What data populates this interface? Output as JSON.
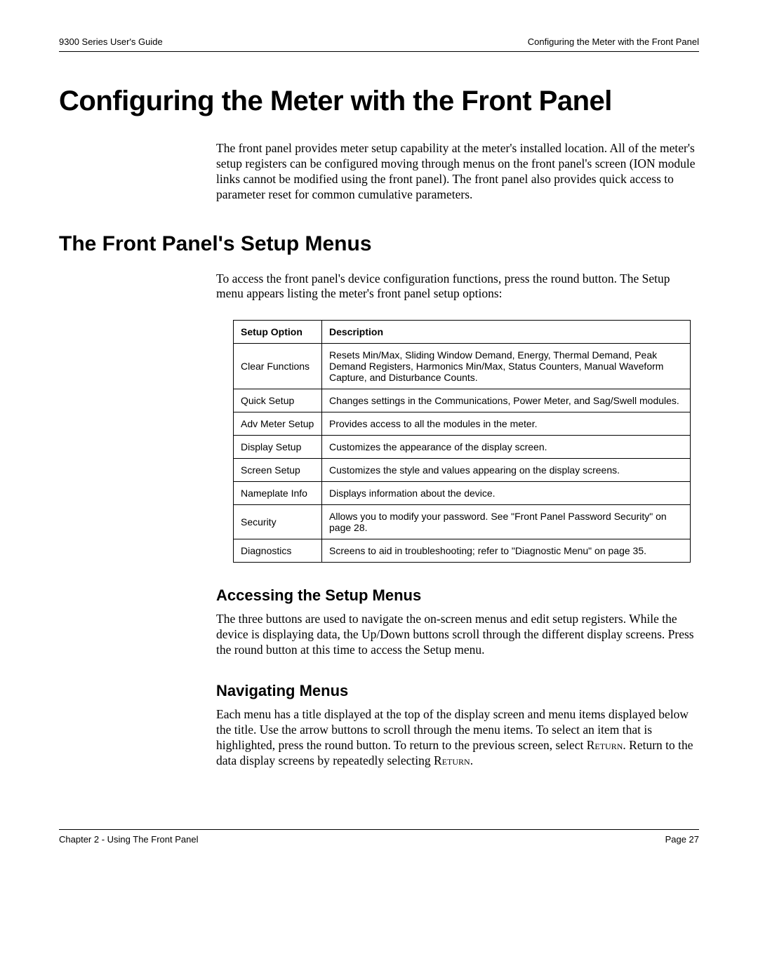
{
  "header": {
    "left": "9300 Series User's Guide",
    "right": "Configuring the Meter with the Front Panel"
  },
  "title": "Configuring the Meter with the Front Panel",
  "intro": "The front panel provides meter setup capability at the meter's installed location. All of the meter's setup registers can be configured moving through menus on the front panel's screen (ION module links cannot be modified using the front panel). The front panel also provides quick access to parameter reset for common cumulative parameters.",
  "section1": {
    "heading": "The Front Panel's Setup Menus",
    "body": "To access the front panel's device configuration functions, press the round button. The Setup menu appears listing the meter's front panel setup options:"
  },
  "table": {
    "col1": "Setup Option",
    "col2": "Description",
    "rows": [
      {
        "opt": "Clear Functions",
        "desc": "Resets Min/Max, Sliding Window Demand, Energy, Thermal Demand, Peak Demand Registers, Harmonics Min/Max, Status Counters, Manual Waveform Capture, and Disturbance Counts."
      },
      {
        "opt": "Quick Setup",
        "desc": "Changes settings in the Communications, Power Meter, and Sag/Swell modules."
      },
      {
        "opt": "Adv Meter Setup",
        "desc": "Provides access to all the modules in the meter."
      },
      {
        "opt": "Display Setup",
        "desc": "Customizes the appearance of the display screen."
      },
      {
        "opt": "Screen Setup",
        "desc": "Customizes the style and values appearing on the display screens."
      },
      {
        "opt": "Nameplate Info",
        "desc": "Displays information about the device."
      },
      {
        "opt": "Security",
        "desc": "Allows you to modify your password. See \"Front Panel Password Security\" on page 28."
      },
      {
        "opt": "Diagnostics",
        "desc": "Screens to aid in troubleshooting; refer to \"Diagnostic Menu\" on page 35."
      }
    ]
  },
  "sub1": {
    "heading": "Accessing the Setup Menus",
    "body": "The three buttons are used to navigate the on-screen menus and edit setup registers. While the device is displaying data, the Up/Down buttons scroll through the different display screens. Press the round button at this time to access the Setup menu."
  },
  "sub2": {
    "heading": "Navigating Menus",
    "body_a": "Each menu has a title displayed at the top of the display screen and menu items displayed below the title. Use the arrow buttons to scroll through the menu items. To select an item that is highlighted, press the round button. To return to the previous screen, select ",
    "return1": "Return",
    "body_b": ". Return to the data display screens by repeatedly selecting ",
    "return2": "Return",
    "body_c": "."
  },
  "footer": {
    "left": "Chapter 2 - Using The Front Panel",
    "right": "Page 27"
  }
}
